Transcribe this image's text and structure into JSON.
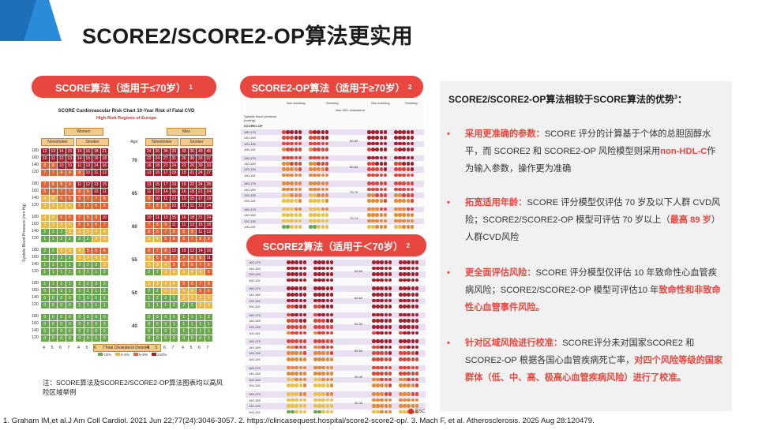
{
  "page": {
    "title": "SCORE2/SCORE2-OP算法更实用",
    "brand_color": "#e8473f"
  },
  "pills": {
    "score": {
      "label": "SCORE算法（适用于≤70岁）",
      "sup": "1"
    },
    "score2op": {
      "label": "SCORE2-OP算法（适用于≥70岁）",
      "sup": "2"
    },
    "score2": {
      "label": "SCORE2算法（适用于＜70岁）",
      "sup": "2"
    }
  },
  "score_chart": {
    "title": "SCORE Cardiovascular Risk Chart 10-Year Risk of Fatal CVD",
    "subtitle": "High-Risk Regions of Europe",
    "women": "Women",
    "men": "Men",
    "nonsmoker": "Nonsmoker",
    "smoker": "Smoker",
    "age_header": "Age",
    "ylabel": "Systolic Blood Pressure (mm Hg)",
    "xlabel": "Total Cholesterol (mmol/l)",
    "sbp_ticks": [
      "180",
      "160",
      "140",
      "120"
    ],
    "chol_ticks": [
      "4",
      "5",
      "6",
      "7"
    ],
    "ages": [
      "70",
      "65",
      "60",
      "55",
      "50",
      "40"
    ],
    "legend": [
      "<3%",
      "3-4%",
      "5-9%",
      "≥10%"
    ],
    "legend_colors": [
      "#6aa84f",
      "#e8b84a",
      "#e0663a",
      "#a0202c"
    ],
    "rows": [
      [
        [
          12,
          13,
          14,
          15
        ],
        [
          14,
          16,
          18,
          21
        ],
        [
          24,
          26,
          30,
          33
        ],
        [
          33,
          36,
          40,
          45
        ]
      ],
      [
        [
          10,
          11,
          12,
          13
        ],
        [
          14,
          15,
          16,
          18
        ],
        [
          22,
          24,
          27,
          31
        ],
        [
          26,
          30,
          33,
          37
        ]
      ],
      [
        [
          8,
          8,
          10,
          10
        ],
        [
          11,
          13,
          14,
          16
        ],
        [
          16,
          18,
          21,
          24
        ],
        [
          23,
          26,
          30,
          33
        ]
      ],
      [
        [
          7,
          7,
          8,
          9
        ],
        [
          9,
          10,
          11,
          12
        ],
        [
          13,
          15,
          17,
          19
        ],
        [
          19,
          21,
          24,
          27
        ]
      ],
      [
        [
          7,
          8,
          8,
          9
        ],
        [
          11,
          12,
          13,
          15
        ],
        [
          13,
          15,
          17,
          19
        ],
        [
          19,
          22,
          24,
          28
        ]
      ],
      [
        [
          5,
          6,
          7,
          7
        ],
        [
          8,
          9,
          10,
          11
        ],
        [
          11,
          12,
          14,
          16
        ],
        [
          16,
          18,
          21,
          24
        ]
      ],
      [
        [
          4,
          4,
          5,
          5
        ],
        [
          6,
          7,
          7,
          8
        ],
        [
          9,
          10,
          11,
          13
        ],
        [
          13,
          15,
          17,
          19
        ]
      ],
      [
        [
          3,
          3,
          3,
          4
        ],
        [
          5,
          5,
          6,
          6
        ],
        [
          7,
          8,
          9,
          10
        ],
        [
          10,
          11,
          12,
          14
        ]
      ],
      [
        [
          4,
          4,
          5,
          5
        ],
        [
          7,
          8,
          9,
          10
        ],
        [
          10,
          11,
          13,
          15
        ],
        [
          16,
          18,
          21,
          24
        ]
      ],
      [
        [
          3,
          3,
          3,
          4
        ],
        [
          5,
          5,
          6,
          7
        ],
        [
          7,
          8,
          9,
          11
        ],
        [
          11,
          13,
          15,
          18
        ]
      ],
      [
        [
          2,
          2,
          2,
          3
        ],
        [
          3,
          3,
          4,
          4
        ],
        [
          5,
          6,
          7,
          8
        ],
        [
          8,
          9,
          11,
          13
        ]
      ],
      [
        [
          1,
          1,
          2,
          2
        ],
        [
          2,
          2,
          3,
          3
        ],
        [
          3,
          4,
          5,
          6
        ],
        [
          6,
          7,
          8,
          9
        ]
      ],
      [
        [
          2,
          2,
          3,
          3
        ],
        [
          4,
          5,
          5,
          6
        ],
        [
          6,
          7,
          8,
          10
        ],
        [
          10,
          12,
          14,
          16
        ]
      ],
      [
        [
          1,
          1,
          2,
          2
        ],
        [
          3,
          3,
          4,
          4
        ],
        [
          4,
          5,
          6,
          7
        ],
        [
          7,
          8,
          9,
          11
        ]
      ],
      [
        [
          1,
          1,
          1,
          1
        ],
        [
          2,
          2,
          2,
          3
        ],
        [
          3,
          3,
          4,
          5
        ],
        [
          5,
          6,
          7,
          8
        ]
      ],
      [
        [
          1,
          1,
          1,
          1
        ],
        [
          1,
          1,
          1,
          2
        ],
        [
          2,
          2,
          3,
          3
        ],
        [
          3,
          4,
          4,
          5
        ]
      ],
      [
        [
          1,
          1,
          1,
          1
        ],
        [
          2,
          2,
          2,
          2
        ],
        [
          3,
          3,
          4,
          4
        ],
        [
          5,
          6,
          7,
          8
        ]
      ],
      [
        [
          0,
          0,
          0,
          1
        ],
        [
          1,
          1,
          1,
          2
        ],
        [
          2,
          2,
          3,
          3
        ],
        [
          4,
          4,
          5,
          6
        ]
      ],
      [
        [
          0,
          0,
          0,
          0
        ],
        [
          1,
          1,
          1,
          1
        ],
        [
          1,
          2,
          2,
          2
        ],
        [
          3,
          3,
          4,
          4
        ]
      ],
      [
        [
          0,
          0,
          0,
          0
        ],
        [
          1,
          1,
          1,
          1
        ],
        [
          1,
          1,
          1,
          2
        ],
        [
          2,
          2,
          3,
          3
        ]
      ],
      [
        [
          0,
          0,
          0,
          0
        ],
        [
          0,
          0,
          0,
          0
        ],
        [
          0,
          0,
          0,
          1
        ],
        [
          1,
          1,
          1,
          2
        ]
      ],
      [
        [
          0,
          0,
          0,
          0
        ],
        [
          0,
          0,
          0,
          0
        ],
        [
          0,
          0,
          0,
          1
        ],
        [
          1,
          1,
          1,
          1
        ]
      ],
      [
        [
          0,
          0,
          0,
          0
        ],
        [
          0,
          0,
          0,
          0
        ],
        [
          0,
          0,
          0,
          0
        ],
        [
          1,
          1,
          1,
          1
        ]
      ],
      [
        [
          0,
          0,
          0,
          0
        ],
        [
          0,
          0,
          0,
          0
        ],
        [
          0,
          0,
          0,
          0
        ],
        [
          0,
          0,
          0,
          1
        ]
      ]
    ]
  },
  "score2op_chart": {
    "sbp_header": "Systolic blood pressure (mmHg)",
    "name": "SCORE2-OP",
    "nonhdl": "Non-HDL cholesterol",
    "nonsmoking": "Non-smoking",
    "smoking": "Smoking",
    "age_bands": [
      "85-89",
      "80-84",
      "75-79",
      "70-74"
    ],
    "sbp_rows": [
      "160-179",
      "140-159",
      "120-139",
      "100-119"
    ]
  },
  "score2_chart": {
    "age_bands": [
      "65-69",
      "60-64",
      "55-59",
      "50-54",
      "45-49",
      "40-44"
    ],
    "sbp_rows": [
      "160-179",
      "140-159",
      "120-139",
      "100-119"
    ]
  },
  "note": "注：SCORE算法及SCORE2/SCORE2-OP算法图表均以高风险区域举例",
  "advantages": {
    "heading": "SCORE2/SCORE2-OP算法相较于SCORE算法的优势",
    "heading_sup": "3",
    "items": [
      {
        "lead": "采用更准确的参数：",
        "t1": "SCORE 评分的计算基于个体的总胆固醇水平，而 SCORE2 和 SCORE2-OP 风险模型则采用",
        "hl": "non-HDL-C",
        "t2": "作为输入参数，操作更为准确"
      },
      {
        "lead": "拓宽适用年龄：",
        "t1": "SCORE 评分模型仅评估 70 岁及以下人群 CVD风险；SCORE2/SCORE2-OP 模型可评估 70 岁以上（",
        "hl": "最高 89 岁",
        "t2": "）人群CVD风险"
      },
      {
        "lead": "更全面评估风险：",
        "t1": "SCORE 评分模型仅评估 10 年致命性心血管疾病风险；SCORE2/SCORE2-OP 模型可评估10 年",
        "hl": "致命性和非致命性心血管事件风险。",
        "t2": ""
      },
      {
        "lead": "针对区域风险进行校准：",
        "t1": "SCORE评分未对国家SCORE2 和 SCORE2-OP 根据各国心血管疾病死亡率，",
        "hl": "对四个风险等级的国家群体（低、中、高、极高心血管疾病风险）进行了校准。",
        "t2": ""
      }
    ]
  },
  "footer": "1.   Graham IM,et al.J Am Coll Cardiol. 2021 Jun 22;77(24):3046-3057.  2. https://clincasequest.hospital/score2-score2-op/.   3. Mach F, et al. Atherosclerosis. 2025 Aug 28:120479.",
  "esc_label": "ESC"
}
